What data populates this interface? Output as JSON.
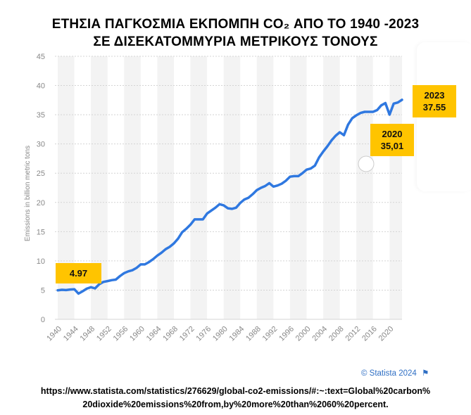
{
  "header": {
    "title_line1": "ΕΤΗΣΙΑ ΠΑΓΚΟΣΜΙΑ ΕΚΠΟΜΠΗ CO₂ ΑΠΟ ΤΟ 1940 -2023",
    "title_line2": "ΣΕ ΔΙΣΕΚΑΤΟΜΜΥΡΙΑ ΜΕΤΡΙΚΟΥΣ ΤΟΝΟΥΣ"
  },
  "callouts": {
    "start_value": "4.97",
    "end_year": "2023",
    "end_value": "37.55",
    "covid_year": "2020",
    "covid_value": "35,01"
  },
  "footer": {
    "credit": "© Statista 2024",
    "url_line1": "https://www.statista.com/statistics/276629/global-co2-emissions/#:~:text=Global%20carbon%",
    "url_line2": "20dioxide%20emissions%20from,by%20more%20than%2060%20percent."
  },
  "colors": {
    "line": "#2f78e0",
    "callout": "#ffc400",
    "band": "#f3f3f3",
    "grid": "#d4d4d4"
  },
  "chart_data": {
    "type": "line",
    "title": "ΕΤΗΣΙΑ ΠΑΓΚΟΣΜΙΑ ΕΚΠΟΜΠΗ CO₂ ΑΠΟ ΤΟ 1940 -2023",
    "ylabel": "Emissions in billion metric tons",
    "xlabel": "",
    "ylim": [
      0,
      45
    ],
    "yticks": [
      0,
      5,
      10,
      15,
      20,
      25,
      30,
      35,
      40,
      45
    ],
    "xticks": [
      1940,
      1944,
      1948,
      1952,
      1956,
      1960,
      1964,
      1968,
      1972,
      1976,
      1980,
      1984,
      1988,
      1992,
      1996,
      2000,
      2004,
      2008,
      2012,
      2016,
      2020
    ],
    "x": [
      1940,
      1941,
      1942,
      1943,
      1944,
      1945,
      1946,
      1947,
      1948,
      1949,
      1950,
      1951,
      1952,
      1953,
      1954,
      1955,
      1956,
      1957,
      1958,
      1959,
      1960,
      1961,
      1962,
      1963,
      1964,
      1965,
      1966,
      1967,
      1968,
      1969,
      1970,
      1971,
      1972,
      1973,
      1974,
      1975,
      1976,
      1977,
      1978,
      1979,
      1980,
      1981,
      1982,
      1983,
      1984,
      1985,
      1986,
      1987,
      1988,
      1989,
      1990,
      1991,
      1992,
      1993,
      1994,
      1995,
      1996,
      1997,
      1998,
      1999,
      2000,
      2001,
      2002,
      2003,
      2004,
      2005,
      2006,
      2007,
      2008,
      2009,
      2010,
      2011,
      2012,
      2013,
      2014,
      2015,
      2016,
      2017,
      2018,
      2019,
      2020,
      2021,
      2022,
      2023
    ],
    "series": [
      {
        "name": "Global CO2 emissions",
        "values": [
          4.97,
          5.05,
          5.0,
          5.1,
          5.15,
          4.4,
          4.8,
          5.25,
          5.5,
          5.3,
          6.0,
          6.4,
          6.55,
          6.7,
          6.8,
          7.4,
          7.9,
          8.2,
          8.4,
          8.8,
          9.4,
          9.4,
          9.8,
          10.3,
          10.9,
          11.4,
          12.0,
          12.4,
          13.0,
          13.8,
          14.9,
          15.5,
          16.2,
          17.1,
          17.1,
          17.1,
          18.1,
          18.6,
          19.1,
          19.7,
          19.5,
          19.0,
          18.9,
          19.1,
          19.9,
          20.5,
          20.8,
          21.4,
          22.1,
          22.5,
          22.8,
          23.3,
          22.7,
          22.9,
          23.2,
          23.7,
          24.4,
          24.5,
          24.5,
          25.0,
          25.6,
          25.8,
          26.3,
          27.7,
          28.7,
          29.6,
          30.6,
          31.4,
          32.0,
          31.5,
          33.3,
          34.4,
          34.9,
          35.3,
          35.5,
          35.5,
          35.5,
          35.8,
          36.6,
          37.0,
          35.01,
          36.9,
          37.1,
          37.55
        ]
      }
    ],
    "annotations": [
      {
        "label": "4.97"
      },
      {
        "label": "2020 35,01"
      },
      {
        "label": "2023 37.55"
      }
    ]
  }
}
